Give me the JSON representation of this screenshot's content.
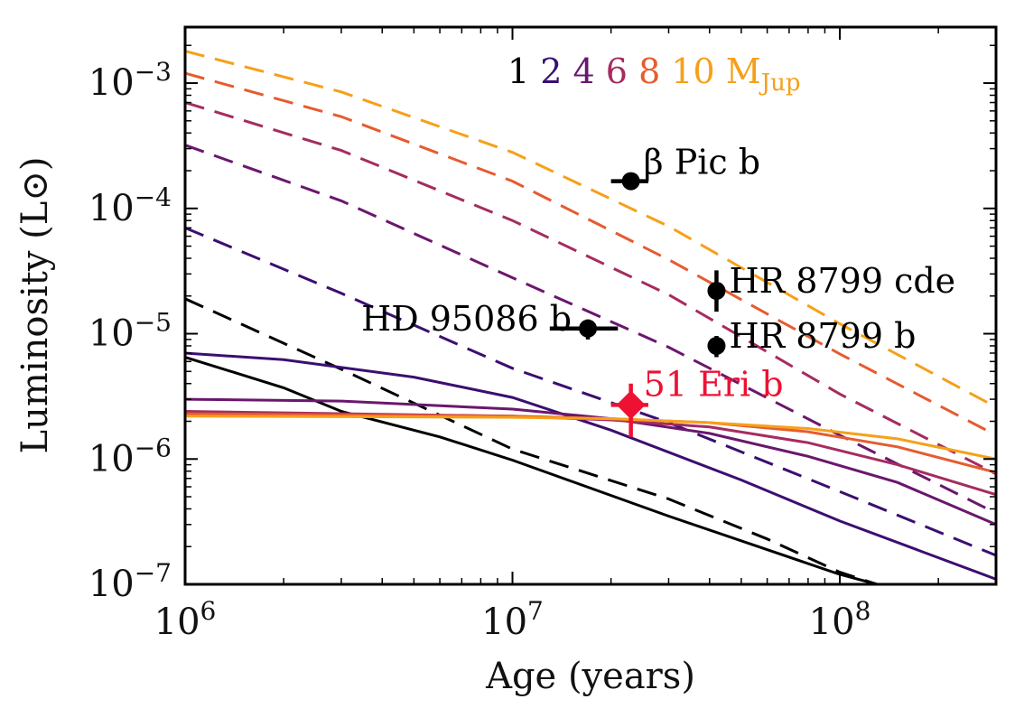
{
  "chart_data": {
    "type": "line",
    "title": "",
    "xlabel": "Age (years)",
    "ylabel": "Luminosity (L⊙)",
    "xscale": "log",
    "yscale": "log",
    "xlim": [
      1000000,
      300000000
    ],
    "ylim": [
      1e-07,
      0.0028
    ],
    "grid": false,
    "x_ticks": [
      {
        "value": 1000000,
        "base": "10",
        "exp": "6"
      },
      {
        "value": 10000000,
        "base": "10",
        "exp": "7"
      },
      {
        "value": 100000000,
        "base": "10",
        "exp": "8"
      }
    ],
    "y_ticks": [
      {
        "value": 1e-07,
        "base": "10",
        "exp": "−7"
      },
      {
        "value": 1e-06,
        "base": "10",
        "exp": "−6"
      },
      {
        "value": 1e-05,
        "base": "10",
        "exp": "−5"
      },
      {
        "value": 0.0001,
        "base": "10",
        "exp": "−4"
      },
      {
        "value": 0.001,
        "base": "10",
        "exp": "−3"
      }
    ],
    "legend": {
      "placement": "top-right",
      "entries": [
        {
          "label": "1",
          "color": "#000000"
        },
        {
          "label": "2",
          "color": "#3b0f70"
        },
        {
          "label": "4",
          "color": "#6a176e"
        },
        {
          "label": "6",
          "color": "#a52c60"
        },
        {
          "label": "8",
          "color": "#e55c30"
        },
        {
          "label": "10",
          "color": "#f6a01a"
        }
      ],
      "unit": "M",
      "unit_sub": "Jup"
    },
    "series": [
      {
        "name": "1 MJup hot start",
        "style": "dashed",
        "color": "#000000",
        "x": [
          1000000,
          3000000,
          10000000,
          30000000,
          60000000,
          100000000,
          130000000
        ],
        "y": [
          1.9e-05,
          5.2e-06,
          1.2e-06,
          4.8e-07,
          2.3e-07,
          1.25e-07,
          1e-07
        ]
      },
      {
        "name": "2 MJup hot start",
        "style": "dashed",
        "color": "#3b0f70",
        "x": [
          1000000,
          3000000,
          10000000,
          30000000,
          100000000,
          300000000
        ],
        "y": [
          7e-05,
          2.1e-05,
          5.3e-06,
          1.95e-06,
          5.5e-07,
          1.7e-07
        ]
      },
      {
        "name": "4 MJup hot start",
        "style": "dashed",
        "color": "#6a176e",
        "x": [
          1000000,
          3000000,
          10000000,
          30000000,
          100000000,
          300000000
        ],
        "y": [
          0.00032,
          0.000115,
          2.8e-05,
          7.8e-06,
          1.55e-06,
          3.7e-07
        ]
      },
      {
        "name": "6 MJup hot start",
        "style": "dashed",
        "color": "#a52c60",
        "x": [
          1000000,
          3000000,
          10000000,
          30000000,
          100000000,
          300000000
        ],
        "y": [
          0.0007,
          0.00029,
          8e-05,
          2.05e-05,
          3.3e-06,
          7.6e-07
        ]
      },
      {
        "name": "8 MJup hot start",
        "style": "dashed",
        "color": "#e55c30",
        "x": [
          1000000,
          3000000,
          10000000,
          30000000,
          100000000,
          300000000
        ],
        "y": [
          0.0012,
          0.00054,
          0.000165,
          3.9e-05,
          6.9e-06,
          1.55e-06
        ]
      },
      {
        "name": "10 MJup hot start",
        "style": "dashed",
        "color": "#f6a01a",
        "x": [
          1000000,
          3000000,
          10000000,
          30000000,
          100000000,
          300000000
        ],
        "y": [
          0.0018,
          0.00085,
          0.00028,
          7.2e-05,
          1.2e-05,
          2.6e-06
        ]
      },
      {
        "name": "1 MJup cold start",
        "style": "solid",
        "color": "#000000",
        "x": [
          1000000,
          2000000,
          3000000,
          6000000,
          10000000,
          30000000,
          100000000,
          130000000
        ],
        "y": [
          6.5e-06,
          3.7e-06,
          2.4e-06,
          1.5e-06,
          9.8e-07,
          3.5e-07,
          1.2e-07,
          1e-07
        ]
      },
      {
        "name": "2 MJup cold start",
        "style": "solid",
        "color": "#3b0f70",
        "x": [
          1000000,
          2000000,
          5000000,
          10000000,
          20000000,
          50000000,
          100000000,
          300000000
        ],
        "y": [
          7e-06,
          6.2e-06,
          4.5e-06,
          3.1e-06,
          1.7e-06,
          6.8e-07,
          3.2e-07,
          1.1e-07
        ]
      },
      {
        "name": "4 MJup cold start",
        "style": "solid",
        "color": "#6a176e",
        "x": [
          1000000,
          3000000,
          10000000,
          20000000,
          40000000,
          80000000,
          150000000,
          300000000
        ],
        "y": [
          3e-06,
          2.9e-06,
          2.5e-06,
          2.1e-06,
          1.6e-06,
          1.05e-06,
          6.5e-07,
          3e-07
        ]
      },
      {
        "name": "6 MJup cold start",
        "style": "solid",
        "color": "#a52c60",
        "x": [
          1000000,
          10000000,
          20000000,
          40000000,
          80000000,
          150000000,
          300000000
        ],
        "y": [
          2.4e-06,
          2.2e-06,
          2.05e-06,
          1.8e-06,
          1.35e-06,
          9e-07,
          5.2e-07
        ]
      },
      {
        "name": "8 MJup cold start",
        "style": "solid",
        "color": "#e55c30",
        "x": [
          1000000,
          10000000,
          20000000,
          40000000,
          80000000,
          150000000,
          300000000
        ],
        "y": [
          2.3e-06,
          2.2e-06,
          2.1e-06,
          1.95e-06,
          1.65e-06,
          1.25e-06,
          7.8e-07
        ]
      },
      {
        "name": "10 MJup cold start",
        "style": "solid",
        "color": "#f6a01a",
        "x": [
          1000000,
          10000000,
          20000000,
          40000000,
          80000000,
          150000000,
          300000000
        ],
        "y": [
          2.2e-06,
          2.15e-06,
          2.1e-06,
          1.95e-06,
          1.75e-06,
          1.45e-06,
          1e-06
        ]
      }
    ],
    "points": [
      {
        "name": "β Pic b",
        "label": "β Pic b",
        "color": "#000000",
        "marker": "circle",
        "x": 23000000,
        "y": 0.000165,
        "x_err": [
          20000000,
          26000000
        ],
        "y_err": null,
        "label_side": "right"
      },
      {
        "name": "HR 8799 cde",
        "label": "HR 8799 cde",
        "color": "#000000",
        "marker": "circle",
        "x": 42000000,
        "y": 2.2e-05,
        "x_err": null,
        "y_err": [
          1.5e-05,
          3.2e-05
        ],
        "label_side": "right"
      },
      {
        "name": "HR 8799 b",
        "label": "HR 8799 b",
        "color": "#000000",
        "marker": "circle",
        "x": 42000000,
        "y": 8e-06,
        "x_err": null,
        "y_err": [
          6.5e-06,
          9.6e-06
        ],
        "label_side": "right"
      },
      {
        "name": "HD 95086 b",
        "label": "HD 95086 b",
        "color": "#000000",
        "marker": "circle",
        "x": 17000000,
        "y": 1.1e-05,
        "x_err": [
          13000000,
          21000000
        ],
        "y_err": [
          9e-06,
          1.3e-05
        ],
        "label_side": "left"
      },
      {
        "name": "51 Eri b",
        "label": "51 Eri b",
        "color": "#ee1133",
        "marker": "diamond",
        "x": 23000000,
        "y": 2.7e-06,
        "x_err": [
          20000000,
          26000000
        ],
        "y_err": [
          1.5e-06,
          4e-06
        ],
        "label_side": "right"
      }
    ]
  }
}
